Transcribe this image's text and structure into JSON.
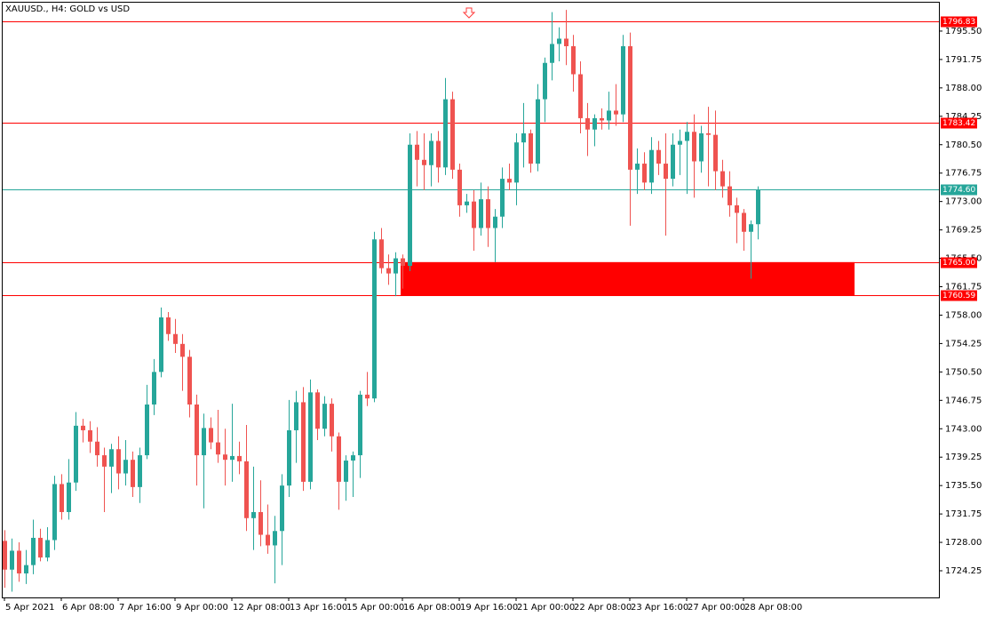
{
  "chart_data": {
    "type": "candlestick",
    "title": "XAUUSD., H4:  GOLD vs USD",
    "categories": [
      "5 Apr 2021",
      null,
      null,
      null,
      null,
      null,
      null,
      null,
      "6 Apr 08:00",
      null,
      null,
      null,
      null,
      null,
      null,
      null,
      "7 Apr 16:00",
      null,
      null,
      null,
      null,
      null,
      null,
      null,
      "9 Apr 00:00",
      null,
      null,
      null,
      null,
      null,
      null,
      null,
      "12 Apr 08:00",
      null,
      null,
      null,
      null,
      null,
      null,
      null,
      "13 Apr 16:00",
      null,
      null,
      null,
      null,
      null,
      null,
      null,
      "15 Apr 00:00",
      null,
      null,
      null,
      null,
      null,
      null,
      null,
      "16 Apr 08:00",
      null,
      null,
      null,
      null,
      null,
      null,
      null,
      "19 Apr 16:00",
      null,
      null,
      null,
      null,
      null,
      null,
      null,
      "21 Apr 00:00",
      null,
      null,
      null,
      null,
      null,
      null,
      null,
      "22 Apr 08:00",
      null,
      null,
      null,
      null,
      null,
      null,
      null,
      "23 Apr 16:00",
      null,
      null,
      null,
      null,
      null,
      null,
      null,
      "27 Apr 00:00",
      null,
      null,
      null,
      null,
      null,
      null,
      null,
      "28 Apr 08:00",
      null,
      null
    ],
    "open": [
      1728.2,
      1724.4,
      1726.9,
      1723.9,
      1725.0,
      1728.6,
      1726.0,
      1728.3,
      1735.7,
      1732.0,
      1735.9,
      1743.4,
      1742.8,
      1741.3,
      1739.5,
      1738.0,
      1740.3,
      1737.1,
      1738.9,
      1735.3,
      1739.5,
      1746.2,
      1750.5,
      1757.7,
      1755.5,
      1754.2,
      1752.5,
      1746.2,
      1739.5,
      1743.1,
      1741.2,
      1739.6,
      1738.9,
      1739.4,
      1738.7,
      1731.2,
      1732.0,
      1729.0,
      1727.6,
      1729.5,
      1735.5,
      1742.8,
      1746.5,
      1736.0,
      1747.8,
      1743.0,
      1746.3,
      1742.0,
      1736.0,
      1738.8,
      1739.5,
      1747.5,
      1747.0,
      1768.0,
      1764.2,
      1763.5,
      1765.5,
      1764.5,
      1780.5,
      1778.5,
      1777.8,
      1781.0,
      1777.5,
      1786.5,
      1777.2,
      1772.5,
      1773.0,
      1769.5,
      1773.3,
      1769.5,
      1771.0,
      1776.0,
      1775.5,
      1780.8,
      1782.0,
      1778.0,
      1786.5,
      1791.3,
      1793.8,
      1794.5,
      1793.5,
      1789.8,
      1784.0,
      1782.5,
      1784.0,
      1783.7,
      1785.0,
      1784.5,
      1793.5,
      1777.2,
      1778.0,
      1775.5,
      1779.8,
      1778.0,
      1776.0,
      1780.5,
      1781.0,
      1782.2,
      1778.3,
      1782.0,
      1781.8,
      1777.0,
      1775.0,
      1772.5,
      1771.5,
      1769.0,
      1770.0
    ],
    "high": [
      1729.6,
      1728.5,
      1728.0,
      1727.0,
      1731.0,
      1729.8,
      1730.0,
      1736.8,
      1737.0,
      1739.0,
      1745.2,
      1744.3,
      1744.0,
      1743.2,
      1740.5,
      1741.0,
      1742.0,
      1741.5,
      1740.0,
      1740.5,
      1748.8,
      1752.2,
      1759.0,
      1758.4,
      1757.5,
      1755.5,
      1753.4,
      1747.5,
      1745.0,
      1744.5,
      1745.5,
      1743.0,
      1746.3,
      1741.3,
      1743.5,
      1738.0,
      1736.2,
      1733.0,
      1731.5,
      1737.0,
      1746.8,
      1748.0,
      1748.5,
      1749.5,
      1748.2,
      1747.3,
      1747.0,
      1742.5,
      1739.5,
      1740.0,
      1748.0,
      1750.5,
      1769.0,
      1769.5,
      1766.0,
      1766.3,
      1766.0,
      1782.0,
      1782.3,
      1782.0,
      1782.0,
      1782.3,
      1789.3,
      1787.5,
      1778.0,
      1774.0,
      1774.5,
      1775.5,
      1775.0,
      1772.0,
      1777.5,
      1778.0,
      1782.0,
      1786.0,
      1782.5,
      1788.5,
      1792.0,
      1798.0,
      1796.0,
      1798.3,
      1795.0,
      1791.5,
      1786.0,
      1784.5,
      1785.3,
      1787.5,
      1788.5,
      1795.0,
      1795.3,
      1780.0,
      1779.5,
      1781.5,
      1781.0,
      1782.0,
      1782.0,
      1782.5,
      1783.5,
      1784.5,
      1783.0,
      1785.5,
      1785.0,
      1778.5,
      1777.0,
      1773.5,
      1772.0,
      1770.5,
      1775.0
    ],
    "low": [
      1722.0,
      1721.5,
      1722.8,
      1722.5,
      1723.8,
      1725.5,
      1725.5,
      1727.0,
      1731.0,
      1731.0,
      1734.8,
      1741.2,
      1739.8,
      1738.0,
      1732.0,
      1734.5,
      1735.0,
      1735.5,
      1734.0,
      1733.2,
      1739.0,
      1744.8,
      1749.8,
      1754.6,
      1753.0,
      1748.0,
      1744.5,
      1735.5,
      1732.5,
      1740.3,
      1738.5,
      1735.5,
      1736.0,
      1737.0,
      1729.5,
      1727.0,
      1727.5,
      1726.5,
      1722.6,
      1725.0,
      1734.0,
      1738.5,
      1734.8,
      1735.0,
      1741.5,
      1742.0,
      1740.0,
      1732.3,
      1733.5,
      1734.0,
      1736.5,
      1746.0,
      1746.5,
      1763.5,
      1762.0,
      1760.5,
      1761.5,
      1763.8,
      1775.0,
      1774.5,
      1775.0,
      1775.5,
      1776.5,
      1776.0,
      1771.0,
      1771.5,
      1766.5,
      1768.5,
      1767.0,
      1765.0,
      1769.5,
      1774.5,
      1772.5,
      1777.5,
      1776.8,
      1777.0,
      1783.5,
      1789.0,
      1791.5,
      1791.0,
      1787.5,
      1782.0,
      1779.0,
      1780.3,
      1782.5,
      1782.5,
      1783.0,
      1783.5,
      1769.8,
      1774.0,
      1774.5,
      1774.0,
      1776.5,
      1768.5,
      1775.0,
      1776.5,
      1774.0,
      1773.5,
      1776.8,
      1775.0,
      1774.5,
      1773.5,
      1771.0,
      1767.5,
      1766.5,
      1762.8,
      1768.0
    ],
    "close": [
      1724.4,
      1726.9,
      1723.9,
      1725.0,
      1728.6,
      1726.0,
      1728.3,
      1735.7,
      1732.0,
      1735.9,
      1743.4,
      1742.8,
      1741.3,
      1739.5,
      1738.0,
      1740.3,
      1737.1,
      1738.9,
      1735.3,
      1739.5,
      1746.2,
      1750.5,
      1757.7,
      1755.5,
      1754.2,
      1752.5,
      1746.2,
      1739.5,
      1743.1,
      1741.2,
      1739.6,
      1738.9,
      1739.4,
      1738.7,
      1731.2,
      1732.0,
      1729.0,
      1727.6,
      1729.5,
      1735.5,
      1742.8,
      1746.5,
      1736.0,
      1747.8,
      1743.0,
      1746.3,
      1742.0,
      1736.0,
      1738.8,
      1739.5,
      1747.5,
      1747.0,
      1768.0,
      1764.2,
      1763.5,
      1765.5,
      1764.5,
      1780.5,
      1778.5,
      1777.8,
      1781.0,
      1777.5,
      1786.5,
      1777.2,
      1772.5,
      1773.0,
      1769.5,
      1773.3,
      1769.5,
      1771.0,
      1776.0,
      1775.5,
      1780.8,
      1782.0,
      1778.0,
      1786.5,
      1791.3,
      1793.8,
      1794.5,
      1793.5,
      1789.8,
      1784.0,
      1782.5,
      1784.0,
      1783.7,
      1785.0,
      1784.5,
      1793.5,
      1777.2,
      1778.0,
      1775.5,
      1779.8,
      1778.0,
      1776.0,
      1780.5,
      1781.0,
      1782.2,
      1778.3,
      1782.0,
      1781.8,
      1777.0,
      1775.0,
      1772.5,
      1771.5,
      1769.0,
      1770.0,
      1774.6
    ],
    "up_color": "#26a69a",
    "down_color": "#ef5350",
    "ylim": [
      1720.73,
      1799.25
    ],
    "yticks": [
      {
        "value": 1724.25,
        "label": "1724.25"
      },
      {
        "value": 1728.0,
        "label": "1728.00"
      },
      {
        "value": 1731.75,
        "label": "1731.75"
      },
      {
        "value": 1735.5,
        "label": "1735.50"
      },
      {
        "value": 1739.25,
        "label": "1739.25"
      },
      {
        "value": 1743.0,
        "label": "1743.00"
      },
      {
        "value": 1746.75,
        "label": "1746.75"
      },
      {
        "value": 1750.5,
        "label": "1750.50"
      },
      {
        "value": 1754.25,
        "label": "1754.25"
      },
      {
        "value": 1758.0,
        "label": "1758.00"
      },
      {
        "value": 1761.75,
        "label": "1761.75"
      },
      {
        "value": 1765.5,
        "label": "1765.50"
      },
      {
        "value": 1769.25,
        "label": "1769.25"
      },
      {
        "value": 1773.0,
        "label": "1773.00"
      },
      {
        "value": 1776.75,
        "label": "1776.75"
      },
      {
        "value": 1780.5,
        "label": "1780.50"
      },
      {
        "value": 1784.25,
        "label": "1784.25"
      },
      {
        "value": 1788.0,
        "label": "1788.00"
      },
      {
        "value": 1791.75,
        "label": "1791.75"
      },
      {
        "value": 1795.5,
        "label": "1795.50"
      }
    ],
    "levels": [
      {
        "value": 1796.83,
        "label": "1796.83",
        "color": "#ff0000"
      },
      {
        "value": 1783.42,
        "label": "1783.42",
        "color": "#ff0000"
      },
      {
        "value": 1774.6,
        "label": "1774.60",
        "color": "#26a69a"
      },
      {
        "value": 1765.0,
        "label": "1765.00",
        "color": "#ff0000"
      },
      {
        "value": 1760.59,
        "label": "1760.59",
        "color": "#ff0000"
      }
    ],
    "zone": {
      "high": 1765.0,
      "low": 1760.59,
      "color": "#ff0000"
    }
  }
}
